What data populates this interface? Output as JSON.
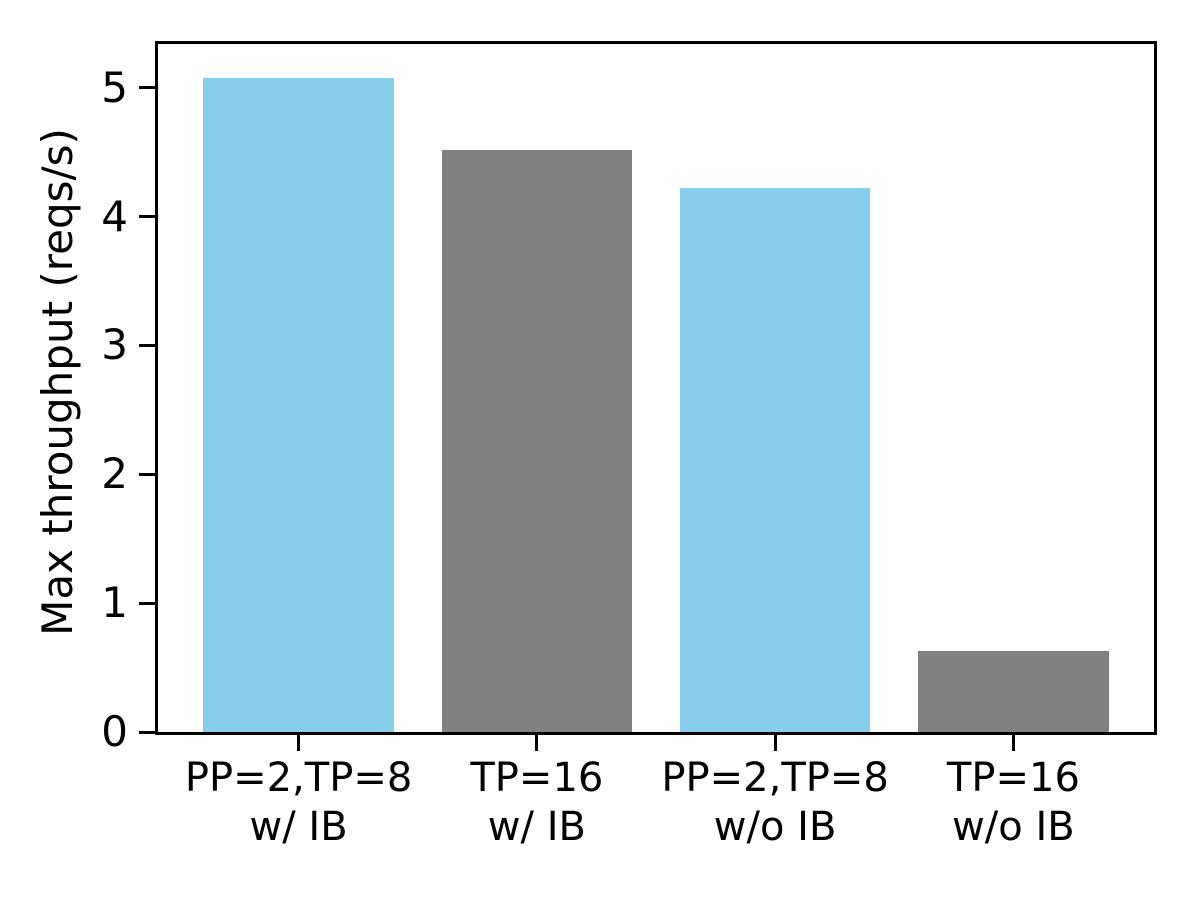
{
  "chart_data": {
    "type": "bar",
    "title": "",
    "xlabel": "",
    "ylabel": "Max throughput (reqs/s)",
    "categories": [
      "PP=2,TP=8\nw/ IB",
      "TP=16\nw/ IB",
      "PP=2,TP=8\nw/o IB",
      "TP=16\nw/o IB"
    ],
    "values": [
      5.08,
      4.52,
      4.22,
      0.63
    ],
    "bar_colors": [
      "#87ceeb",
      "#808080",
      "#87ceeb",
      "#808080"
    ],
    "yticks": [
      0,
      1,
      2,
      3,
      4,
      5
    ],
    "ytick_labels": [
      "0",
      "1",
      "2",
      "3",
      "4",
      "5"
    ],
    "ylim": [
      0,
      5.34
    ],
    "xlim": [
      -0.59,
      3.59
    ],
    "bar_width": 0.8,
    "grid": false,
    "legend_position": "none",
    "axis_color": "#000000",
    "background_color": "#ffffff"
  }
}
